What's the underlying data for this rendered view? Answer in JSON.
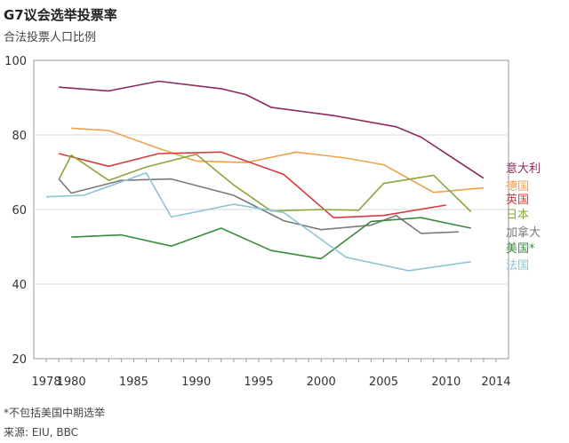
{
  "chart_data": {
    "type": "line",
    "title": "G7议会选举投票率",
    "subtitle": "合法投票人口比例",
    "footnote": "*不包括美国中期选举",
    "source": "来源: EIU, BBC",
    "xlim": [
      1977,
      2015
    ],
    "ylim": [
      20,
      100
    ],
    "yticks": [
      20,
      40,
      60,
      80,
      100
    ],
    "xticks": [
      1978,
      1980,
      1985,
      1990,
      1995,
      2000,
      2005,
      2010,
      2014
    ],
    "grid": true,
    "legend": "right, inline labels at line ends",
    "series": [
      {
        "name": "意大利",
        "color": "#8c2a5e",
        "points": [
          [
            1979,
            92.8
          ],
          [
            1983,
            91.8
          ],
          [
            1987,
            94.4
          ],
          [
            1992,
            92.4
          ],
          [
            1994,
            90.8
          ],
          [
            1996,
            87.4
          ],
          [
            2001,
            85.2
          ],
          [
            2006,
            82.2
          ],
          [
            2008,
            79.4
          ],
          [
            2013,
            68.4
          ]
        ]
      },
      {
        "name": "德国",
        "color": "#f0a04b",
        "points": [
          [
            1980,
            81.8
          ],
          [
            1983,
            81.2
          ],
          [
            1987,
            76.4
          ],
          [
            1990,
            73.0
          ],
          [
            1994,
            72.6
          ],
          [
            1998,
            75.4
          ],
          [
            2002,
            73.8
          ],
          [
            2005,
            72.0
          ],
          [
            2009,
            64.6
          ],
          [
            2013,
            65.8
          ]
        ]
      },
      {
        "name": "英国",
        "color": "#d83a3a",
        "points": [
          [
            1979,
            75.0
          ],
          [
            1983,
            71.6
          ],
          [
            1987,
            75.0
          ],
          [
            1992,
            75.4
          ],
          [
            1997,
            69.4
          ],
          [
            2001,
            57.8
          ],
          [
            2005,
            58.4
          ],
          [
            2010,
            61.2
          ]
        ]
      },
      {
        "name": "日本",
        "color": "#8aa83e",
        "points": [
          [
            1979,
            68.0
          ],
          [
            1980,
            74.6
          ],
          [
            1983,
            67.8
          ],
          [
            1986,
            71.4
          ],
          [
            1990,
            74.8
          ],
          [
            1993,
            66.6
          ],
          [
            1996,
            59.6
          ],
          [
            2000,
            60.0
          ],
          [
            2003,
            59.8
          ],
          [
            2005,
            67.0
          ],
          [
            2009,
            69.2
          ],
          [
            2012,
            59.4
          ]
        ]
      },
      {
        "name": "加拿大",
        "color": "#7a7a7a",
        "points": [
          [
            1979,
            68.2
          ],
          [
            1980,
            64.4
          ],
          [
            1984,
            67.8
          ],
          [
            1988,
            68.2
          ],
          [
            1993,
            63.8
          ],
          [
            1997,
            57.0
          ],
          [
            2000,
            54.6
          ],
          [
            2004,
            55.8
          ],
          [
            2006,
            58.4
          ],
          [
            2008,
            53.6
          ],
          [
            2011,
            54.0
          ]
        ]
      },
      {
        "name": "美国*",
        "color": "#3a8a3a",
        "points": [
          [
            1980,
            52.6
          ],
          [
            1984,
            53.2
          ],
          [
            1988,
            50.2
          ],
          [
            1992,
            55.0
          ],
          [
            1996,
            49.0
          ],
          [
            2000,
            46.8
          ],
          [
            2004,
            56.8
          ],
          [
            2008,
            57.8
          ],
          [
            2012,
            55.0
          ]
        ]
      },
      {
        "name": "法国",
        "color": "#8cc4d4",
        "points": [
          [
            1978,
            63.4
          ],
          [
            1981,
            63.8
          ],
          [
            1986,
            69.8
          ],
          [
            1988,
            58.0
          ],
          [
            1993,
            61.4
          ],
          [
            1997,
            59.2
          ],
          [
            2002,
            47.2
          ],
          [
            2007,
            43.6
          ],
          [
            2012,
            46.0
          ]
        ]
      }
    ]
  }
}
